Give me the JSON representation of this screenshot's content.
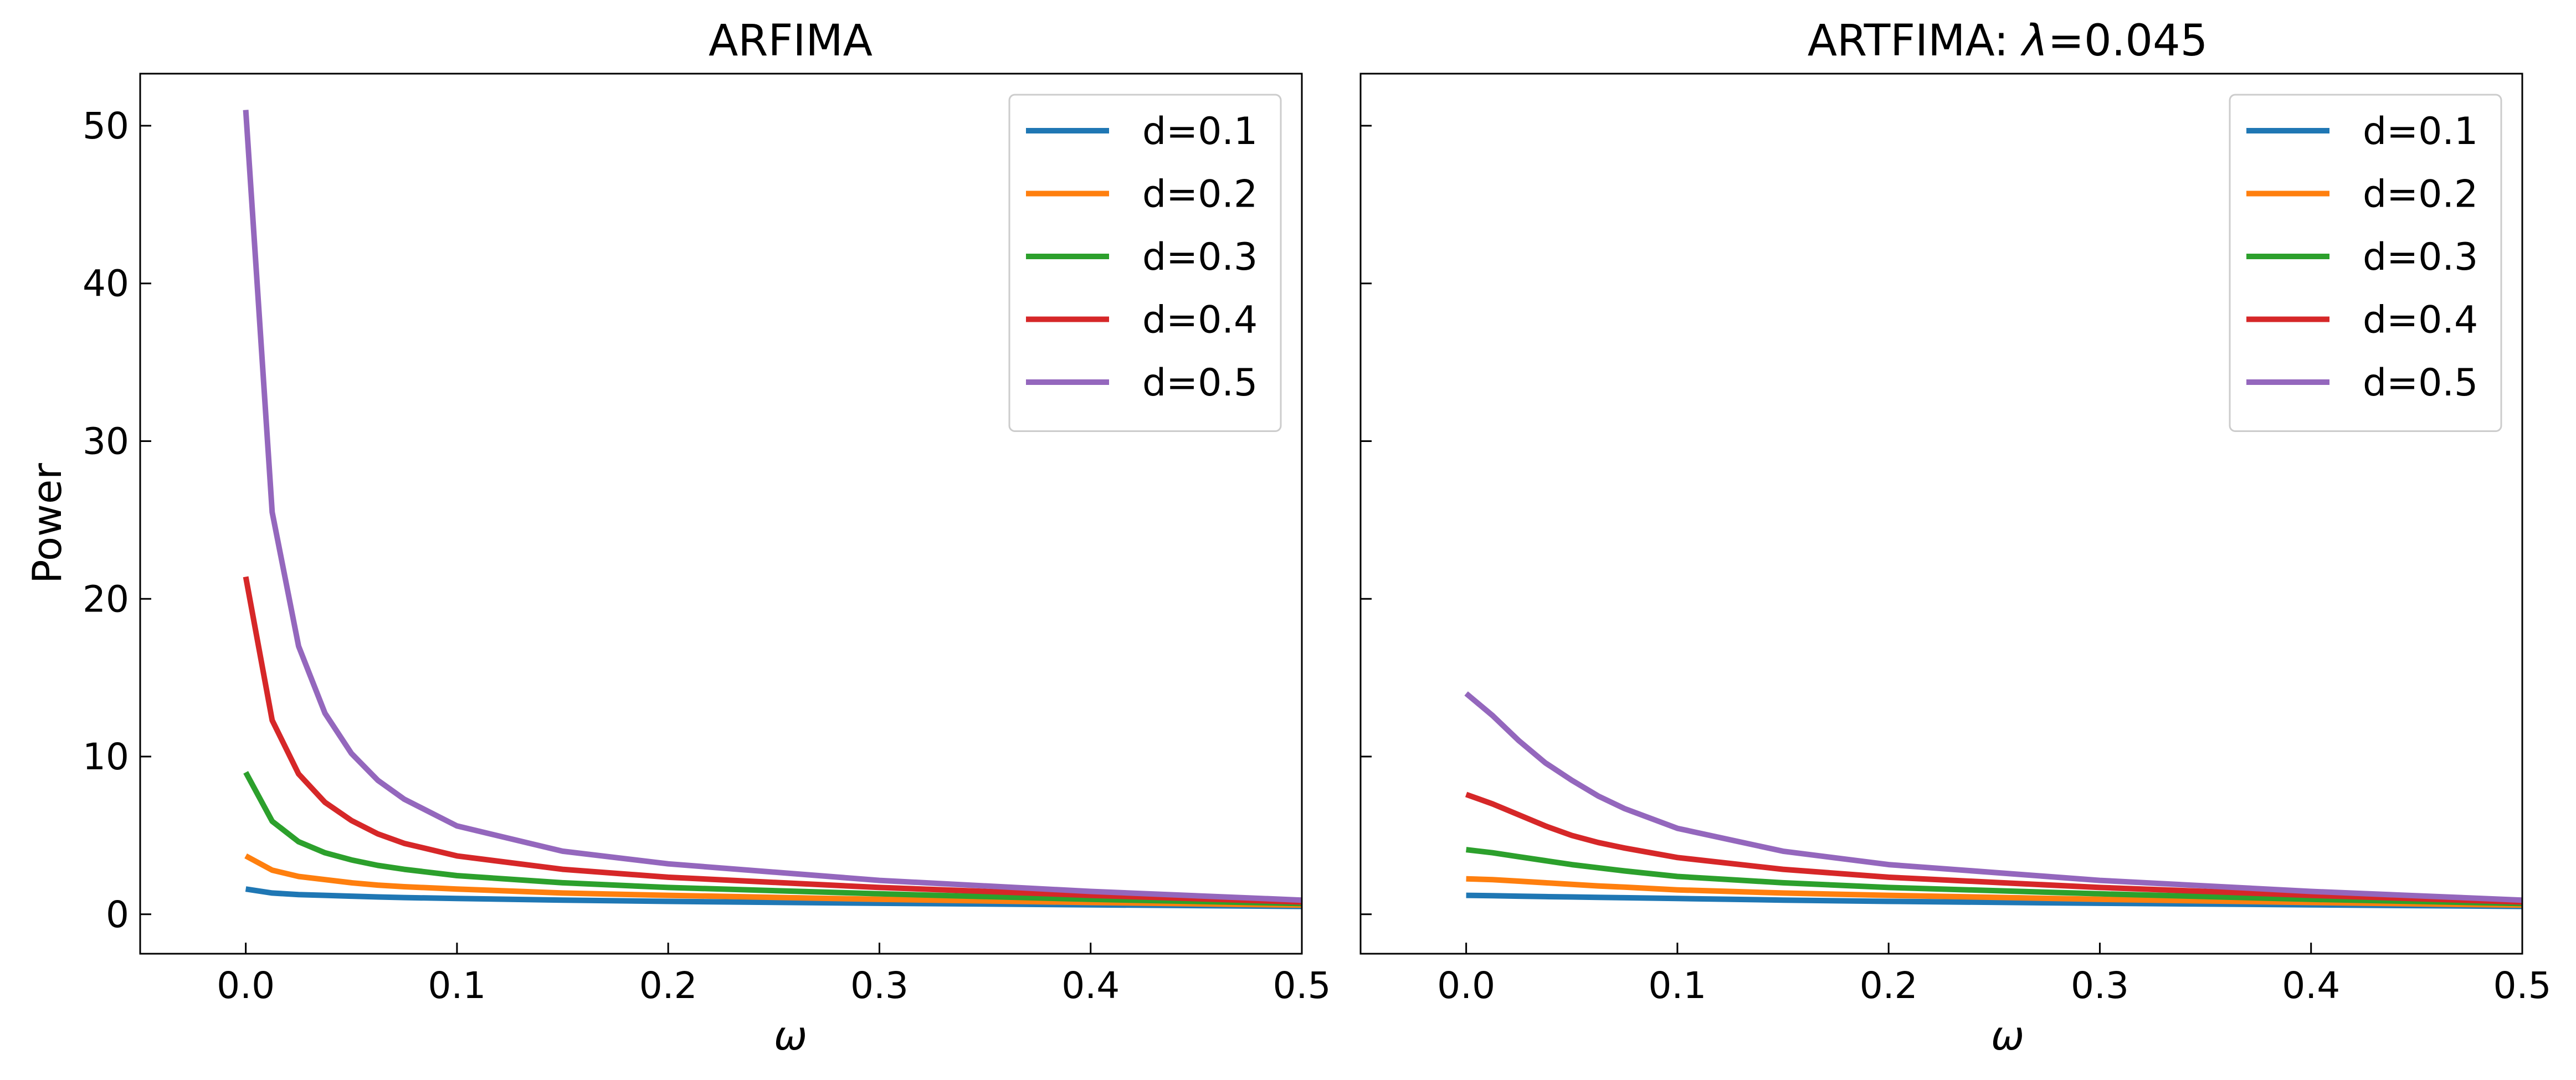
{
  "figure": {
    "layout": "1x2 subplots, shared y-axis"
  },
  "chart_data": [
    {
      "type": "line",
      "title": "ARFIMA",
      "xlabel": "ω",
      "ylabel": "Power",
      "xlim": [
        -0.05,
        0.5
      ],
      "ylim": [
        -2.5,
        53.3
      ],
      "xticks": [
        0.0,
        0.1,
        0.2,
        0.3,
        0.4,
        0.5
      ],
      "xtick_labels": [
        "0.0",
        "0.1",
        "0.2",
        "0.3",
        "0.4",
        "0.5"
      ],
      "yticks": [
        0,
        10,
        20,
        30,
        40,
        50
      ],
      "ytick_labels": [
        "0",
        "10",
        "20",
        "30",
        "40",
        "50"
      ],
      "grid": false,
      "legend_position": "top-right",
      "x": [
        0.0,
        0.0125,
        0.025,
        0.0375,
        0.05,
        0.0625,
        0.075,
        0.1,
        0.15,
        0.2,
        0.3,
        0.4,
        0.5
      ],
      "series": [
        {
          "name": "d=0.1",
          "color": "#1f77b4",
          "values": [
            1.6,
            1.35,
            1.25,
            1.2,
            1.15,
            1.1,
            1.06,
            1.0,
            0.9,
            0.82,
            0.7,
            0.6,
            0.5
          ]
        },
        {
          "name": "d=0.2",
          "color": "#ff7f0e",
          "values": [
            3.7,
            2.8,
            2.4,
            2.2,
            2.0,
            1.85,
            1.75,
            1.6,
            1.35,
            1.2,
            0.95,
            0.75,
            0.58
          ]
        },
        {
          "name": "d=0.3",
          "color": "#2ca02c",
          "values": [
            9.0,
            5.9,
            4.6,
            3.9,
            3.45,
            3.1,
            2.85,
            2.45,
            2.0,
            1.7,
            1.3,
            0.95,
            0.68
          ]
        },
        {
          "name": "d=0.4",
          "color": "#d62728",
          "values": [
            21.4,
            12.3,
            8.9,
            7.1,
            5.95,
            5.1,
            4.5,
            3.7,
            2.85,
            2.35,
            1.7,
            1.2,
            0.78
          ]
        },
        {
          "name": "d=0.5",
          "color": "#9467bd",
          "values": [
            51.0,
            25.5,
            17.0,
            12.75,
            10.2,
            8.5,
            7.3,
            5.6,
            4.0,
            3.2,
            2.15,
            1.45,
            0.9
          ]
        }
      ]
    },
    {
      "type": "line",
      "title_text": "ARTFIMA: ",
      "title_symbol": "λ",
      "title_value": "=0.045",
      "xlabel": "ω",
      "ylabel": "",
      "xlim": [
        -0.05,
        0.5
      ],
      "ylim": [
        -2.5,
        53.3
      ],
      "xticks": [
        0.0,
        0.1,
        0.2,
        0.3,
        0.4,
        0.5
      ],
      "xtick_labels": [
        "0.0",
        "0.1",
        "0.2",
        "0.3",
        "0.4",
        "0.5"
      ],
      "yticks": [
        0,
        10,
        20,
        30,
        40,
        50
      ],
      "ytick_labels": [],
      "grid": false,
      "legend_position": "top-right",
      "x": [
        0.0,
        0.0125,
        0.025,
        0.0375,
        0.05,
        0.0625,
        0.075,
        0.1,
        0.15,
        0.2,
        0.3,
        0.4,
        0.5
      ],
      "series": [
        {
          "name": "d=0.1",
          "color": "#1f77b4",
          "values": [
            1.2,
            1.18,
            1.15,
            1.12,
            1.1,
            1.07,
            1.05,
            1.0,
            0.9,
            0.82,
            0.7,
            0.6,
            0.5
          ]
        },
        {
          "name": "d=0.2",
          "color": "#ff7f0e",
          "values": [
            2.25,
            2.2,
            2.1,
            2.0,
            1.9,
            1.8,
            1.72,
            1.55,
            1.35,
            1.2,
            0.95,
            0.75,
            0.58
          ]
        },
        {
          "name": "d=0.3",
          "color": "#2ca02c",
          "values": [
            4.1,
            3.9,
            3.65,
            3.4,
            3.15,
            2.95,
            2.75,
            2.4,
            2.0,
            1.7,
            1.3,
            0.95,
            0.68
          ]
        },
        {
          "name": "d=0.4",
          "color": "#d62728",
          "values": [
            7.6,
            7.0,
            6.3,
            5.6,
            5.0,
            4.55,
            4.2,
            3.6,
            2.85,
            2.35,
            1.7,
            1.2,
            0.78
          ]
        },
        {
          "name": "d=0.5",
          "color": "#9467bd",
          "values": [
            14.0,
            12.6,
            11.0,
            9.6,
            8.5,
            7.5,
            6.7,
            5.45,
            4.0,
            3.15,
            2.15,
            1.45,
            0.9
          ]
        }
      ]
    }
  ]
}
